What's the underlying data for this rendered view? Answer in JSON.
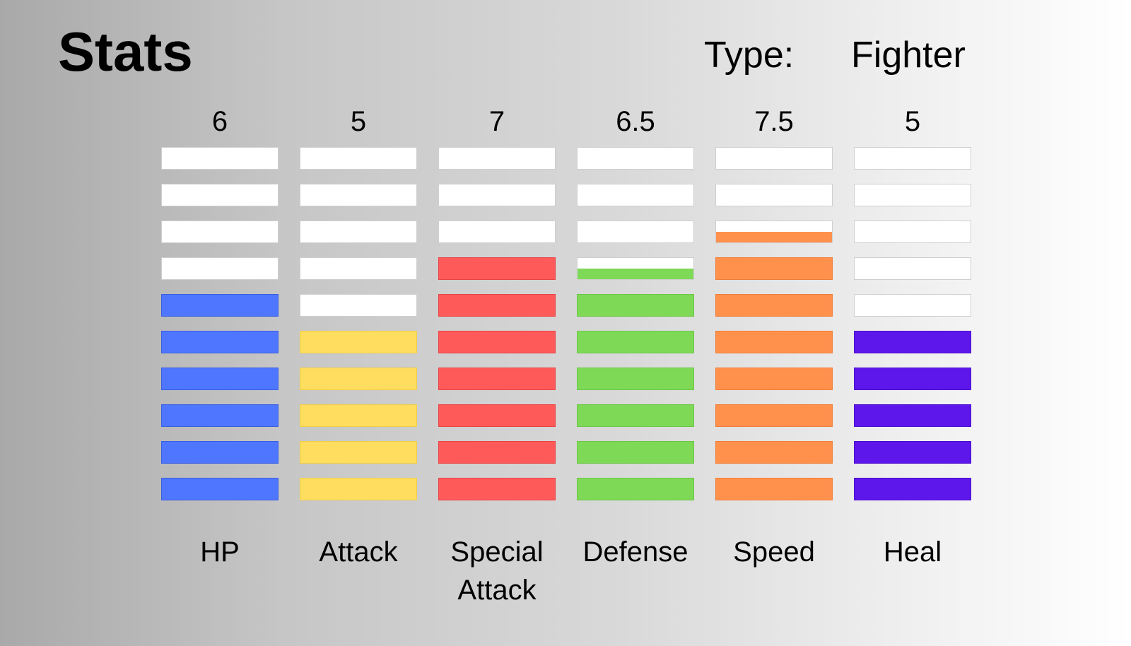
{
  "header": {
    "title": "Stats",
    "type_label": "Type:",
    "type_value": "Fighter"
  },
  "max_segments": 10,
  "stats": [
    {
      "label": "HP",
      "value_text": "6",
      "value": 6,
      "color": "#4f76ff",
      "border": "#3a5fe0"
    },
    {
      "label": "Attack",
      "value_text": "5",
      "value": 5,
      "color": "#ffdd5e",
      "border": "#f0cd48"
    },
    {
      "label": "Special Attack",
      "value_text": "7",
      "value": 7,
      "color": "#ff5a5a",
      "border": "#e84444"
    },
    {
      "label": "Defense",
      "value_text": "6.5",
      "value": 6.5,
      "color": "#7ed957",
      "border": "#6cc646"
    },
    {
      "label": "Speed",
      "value_text": "7.5",
      "value": 7.5,
      "color": "#ff914d",
      "border": "#f07e38"
    },
    {
      "label": "Heal",
      "value_text": "5",
      "value": 5,
      "color": "#5e17eb",
      "border": "#4a0fcc"
    }
  ]
}
